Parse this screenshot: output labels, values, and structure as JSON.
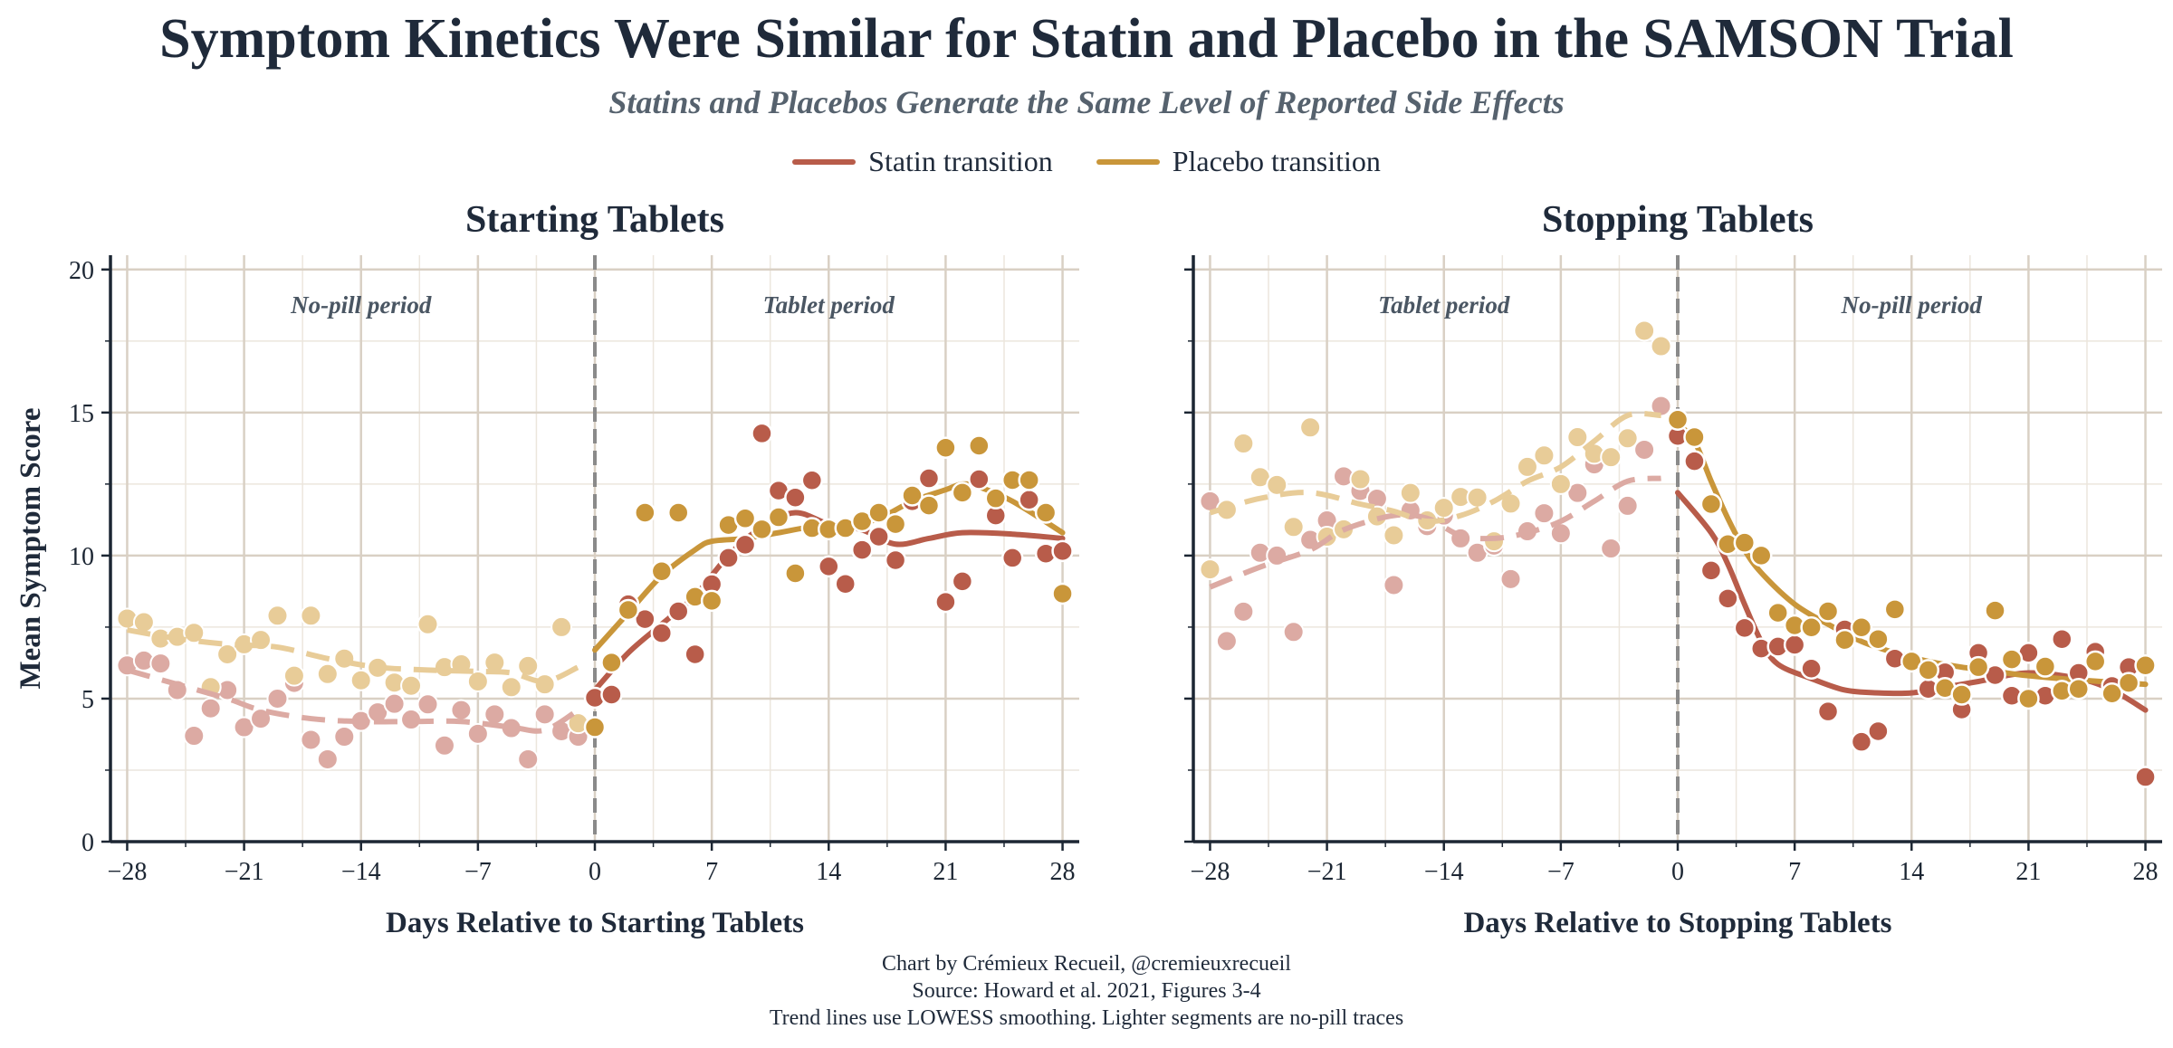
{
  "title": "Symptom Kinetics Were Similar for Statin and Placebo in the SAMSON Trial",
  "subtitle": "Statins and Placebos Generate the Same Level of Reported Side Effects",
  "legend": [
    {
      "label": "Statin transition",
      "color": "#b85c4a"
    },
    {
      "label": "Placebo transition",
      "color": "#c9963a"
    }
  ],
  "colors": {
    "statin": "#b85c4a",
    "placebo": "#c9963a",
    "statin_light": "#dcaaa3",
    "placebo_light": "#e8cc98",
    "grid": "#d9d0c4",
    "axis": "#1c2633"
  },
  "footer": [
    "Chart by Crémieux Recueil, @cremieuxrecueil",
    "Source: Howard et al. 2021, Figures 3-4",
    "Trend lines use LOWESS smoothing. Lighter segments are no-pill traces"
  ],
  "chart_data": [
    {
      "type": "scatter",
      "title": "Starting Tablets",
      "xlabel": "Days Relative to Starting Tablets",
      "ylabel": "Mean Symptom Score",
      "xlim": [
        -29,
        29
      ],
      "ylim": [
        0,
        20.5
      ],
      "xticks": [
        -28,
        -21,
        -14,
        -7,
        0,
        7,
        14,
        21,
        28
      ],
      "xtick_labels": [
        "−28",
        "−21",
        "−14",
        "−7",
        "0",
        "7",
        "14",
        "21",
        "28"
      ],
      "yticks": [
        0,
        5,
        10,
        15,
        20
      ],
      "ytick_labels": [
        "0",
        "5",
        "10",
        "15",
        "20"
      ],
      "grid": true,
      "period_labels": [
        "No-pill period",
        "Tablet period"
      ],
      "pre_is_light": true,
      "series": [
        {
          "name": "Statin transition",
          "pre": [
            6.16,
            6.33,
            6.23,
            5.3,
            3.7,
            4.66,
            5.3,
            4.0,
            4.3,
            5.0,
            5.55,
            3.56,
            2.88,
            3.67,
            4.22,
            4.52,
            4.82,
            4.27,
            4.8,
            3.36,
            4.6,
            3.77,
            4.45,
            3.97,
            2.88,
            4.45,
            3.86,
            3.67
          ],
          "post": [
            5.03,
            5.14,
            8.3,
            7.78,
            7.29,
            8.05,
            6.55,
            9.0,
            9.92,
            10.38,
            14.27,
            12.27,
            12.03,
            12.63,
            9.62,
            9.01,
            10.2,
            10.66,
            9.84,
            11.9,
            12.7,
            8.38,
            9.1,
            12.67,
            11.4,
            9.92,
            11.95,
            10.07,
            10.16
          ],
          "trend_pre": [
            [
              -28,
              6.0
            ],
            [
              -25,
              5.5
            ],
            [
              -22,
              5.0
            ],
            [
              -20,
              4.6
            ],
            [
              -17,
              4.3
            ],
            [
              -14,
              4.2
            ],
            [
              -11,
              4.2
            ],
            [
              -8,
              4.2
            ],
            [
              -5,
              4.0
            ],
            [
              -3,
              3.9
            ],
            [
              -1,
              4.6
            ]
          ],
          "trend_post": [
            [
              0,
              5.3
            ],
            [
              2,
              6.6
            ],
            [
              4,
              7.6
            ],
            [
              6,
              8.6
            ],
            [
              8,
              10.0
            ],
            [
              10,
              11.0
            ],
            [
              12,
              11.5
            ],
            [
              14,
              11.1
            ],
            [
              16,
              10.9
            ],
            [
              18,
              10.4
            ],
            [
              20,
              10.6
            ],
            [
              22,
              10.8
            ],
            [
              25,
              10.75
            ],
            [
              28,
              10.6
            ]
          ]
        },
        {
          "name": "Placebo transition",
          "pre": [
            7.8,
            7.67,
            7.1,
            7.16,
            7.3,
            5.4,
            6.55,
            6.9,
            7.05,
            7.9,
            5.8,
            7.9,
            5.86,
            6.4,
            5.64,
            6.08,
            5.56,
            5.45,
            7.6,
            6.1,
            6.2,
            5.6,
            6.26,
            5.4,
            6.14,
            5.5,
            7.5,
            4.14
          ],
          "post": [
            4.0,
            6.26,
            8.1,
            11.5,
            9.45,
            11.5,
            8.56,
            8.42,
            11.07,
            11.3,
            10.92,
            11.34,
            9.38,
            10.96,
            10.92,
            10.96,
            11.2,
            11.5,
            11.1,
            12.1,
            11.75,
            13.77,
            12.2,
            13.84,
            12.0,
            12.64,
            12.64,
            11.5,
            8.67
          ],
          "trend_pre": [
            [
              -28,
              7.4
            ],
            [
              -25,
              7.1
            ],
            [
              -22,
              6.9
            ],
            [
              -19,
              6.8
            ],
            [
              -16,
              6.4
            ],
            [
              -13,
              6.1
            ],
            [
              -10,
              6.0
            ],
            [
              -7,
              5.95
            ],
            [
              -5,
              5.9
            ],
            [
              -3,
              5.6
            ],
            [
              -1,
              6.1
            ]
          ],
          "trend_post": [
            [
              0,
              6.7
            ],
            [
              2,
              8.0
            ],
            [
              4,
              9.3
            ],
            [
              6,
              10.2
            ],
            [
              7,
              10.5
            ],
            [
              9,
              10.6
            ],
            [
              11,
              10.8
            ],
            [
              13,
              11.0
            ],
            [
              15,
              11.0
            ],
            [
              17,
              11.3
            ],
            [
              19,
              11.9
            ],
            [
              21,
              12.3
            ],
            [
              22,
              12.5
            ],
            [
              23,
              12.4
            ],
            [
              25,
              11.9
            ],
            [
              28,
              10.8
            ]
          ]
        }
      ]
    },
    {
      "type": "scatter",
      "title": "Stopping Tablets",
      "xlabel": "Days Relative to Stopping Tablets",
      "ylabel": "",
      "xlim": [
        -29,
        29
      ],
      "ylim": [
        0,
        20.5
      ],
      "xticks": [
        -28,
        -21,
        -14,
        -7,
        0,
        7,
        14,
        21,
        28
      ],
      "xtick_labels": [
        "−28",
        "−21",
        "−14",
        "−7",
        "0",
        "7",
        "14",
        "21",
        "28"
      ],
      "yticks": [
        0,
        5,
        10,
        15,
        20
      ],
      "ytick_labels": [
        "",
        "",
        "",
        "",
        ""
      ],
      "grid": true,
      "period_labels": [
        "Tablet period",
        "No-pill period"
      ],
      "pre_is_light": true,
      "series": [
        {
          "name": "Statin transition",
          "pre": [
            11.9,
            7.01,
            8.04,
            10.1,
            10.0,
            7.33,
            10.55,
            11.23,
            12.77,
            12.26,
            11.99,
            8.97,
            11.58,
            11.03,
            11.4,
            10.6,
            10.1,
            10.35,
            9.18,
            10.85,
            11.48,
            10.78,
            12.19,
            13.19,
            10.25,
            11.74,
            13.7,
            15.23
          ],
          "post": [
            14.18,
            13.3,
            9.48,
            8.5,
            7.47,
            6.75,
            6.82,
            6.88,
            6.05,
            4.55,
            7.42,
            3.49,
            3.86,
            6.4,
            6.3,
            5.34,
            5.92,
            4.62,
            6.6,
            5.82,
            5.1,
            6.6,
            5.1,
            7.08,
            5.9,
            6.64,
            5.44,
            6.1,
            2.26
          ],
          "trend_pre": [
            [
              -28,
              8.9
            ],
            [
              -25,
              9.6
            ],
            [
              -22,
              10.2
            ],
            [
              -20,
              10.9
            ],
            [
              -17,
              11.4
            ],
            [
              -15,
              11.3
            ],
            [
              -13,
              10.7
            ],
            [
              -11,
              10.6
            ],
            [
              -9,
              10.8
            ],
            [
              -7,
              11.2
            ],
            [
              -5,
              11.9
            ],
            [
              -3,
              12.6
            ],
            [
              -1,
              12.7
            ]
          ],
          "trend_post": [
            [
              0,
              12.2
            ],
            [
              2,
              10.8
            ],
            [
              3,
              9.7
            ],
            [
              4,
              8.3
            ],
            [
              5,
              7.0
            ],
            [
              6,
              6.2
            ],
            [
              8,
              5.7
            ],
            [
              10,
              5.3
            ],
            [
              12,
              5.2
            ],
            [
              14,
              5.2
            ],
            [
              16,
              5.4
            ],
            [
              18,
              5.6
            ],
            [
              21,
              5.9
            ],
            [
              24,
              5.7
            ],
            [
              26,
              5.3
            ],
            [
              28,
              4.6
            ]
          ]
        },
        {
          "name": "Placebo transition",
          "pre": [
            9.52,
            11.6,
            13.92,
            12.74,
            12.47,
            11.0,
            14.48,
            10.66,
            10.92,
            12.67,
            11.37,
            10.71,
            12.19,
            11.23,
            11.67,
            12.05,
            12.03,
            10.5,
            11.82,
            13.1,
            13.5,
            12.5,
            14.14,
            13.56,
            13.44,
            14.1,
            17.86,
            17.32
          ],
          "post": [
            14.75,
            14.14,
            11.8,
            10.4,
            10.45,
            10.0,
            8.0,
            7.56,
            7.49,
            8.05,
            7.05,
            7.49,
            7.08,
            8.12,
            6.3,
            6.0,
            5.37,
            5.14,
            6.1,
            8.08,
            6.37,
            5.0,
            6.12,
            5.27,
            5.34,
            6.3,
            5.18,
            5.55,
            6.16
          ],
          "trend_pre": [
            [
              -28,
              11.5
            ],
            [
              -25,
              12.0
            ],
            [
              -22,
              12.2
            ],
            [
              -19,
              11.8
            ],
            [
              -17,
              11.55
            ],
            [
              -15,
              11.2
            ],
            [
              -13,
              11.4
            ],
            [
              -11,
              11.9
            ],
            [
              -9,
              12.6
            ],
            [
              -7,
              13.1
            ],
            [
              -5,
              14.0
            ],
            [
              -3,
              14.9
            ],
            [
              -1,
              14.9
            ]
          ],
          "trend_post": [
            [
              0,
              14.6
            ],
            [
              1,
              14.0
            ],
            [
              2,
              12.6
            ],
            [
              3,
              11.3
            ],
            [
              4,
              10.2
            ],
            [
              5,
              9.4
            ],
            [
              7,
              8.3
            ],
            [
              9,
              7.6
            ],
            [
              11,
              7.0
            ],
            [
              13,
              6.6
            ],
            [
              15,
              6.3
            ],
            [
              17,
              6.1
            ],
            [
              19,
              5.95
            ],
            [
              21,
              5.8
            ],
            [
              24,
              5.65
            ],
            [
              28,
              5.5
            ]
          ]
        }
      ]
    }
  ]
}
